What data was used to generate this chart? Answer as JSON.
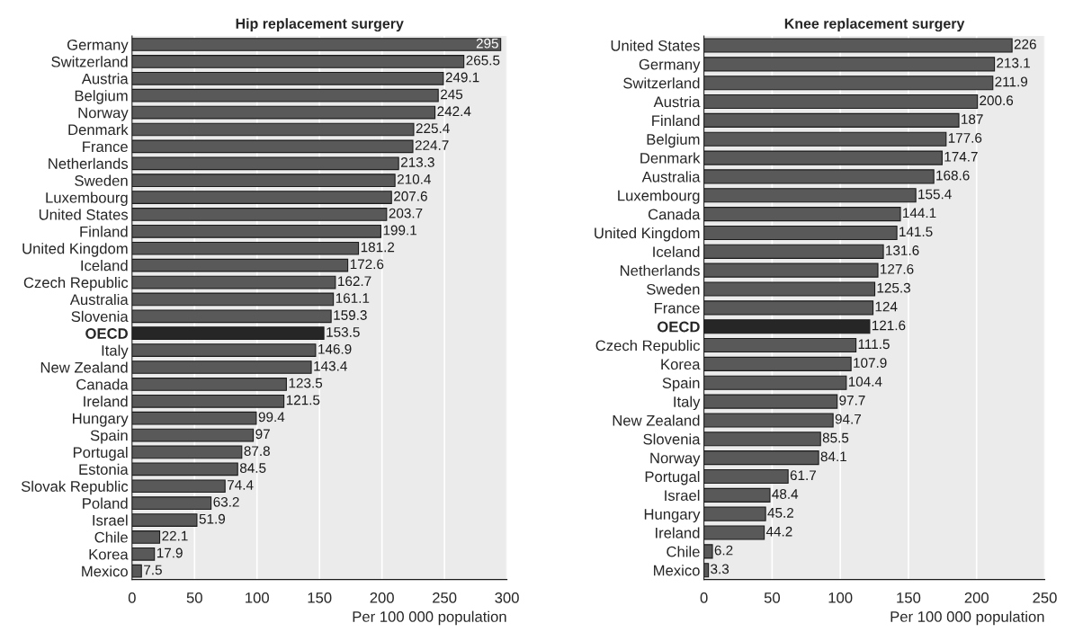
{
  "chart_data": [
    {
      "type": "bar",
      "orientation": "horizontal",
      "title": "Hip replacement surgery",
      "xlabel": "Per 100 000 population",
      "categories": [
        "Germany",
        "Switzerland",
        "Austria",
        "Belgium",
        "Norway",
        "Denmark",
        "France",
        "Netherlands",
        "Sweden",
        "Luxembourg",
        "United States",
        "Finland",
        "United Kingdom",
        "Iceland",
        "Czech Republic",
        "Australia",
        "Slovenia",
        "OECD",
        "Italy",
        "New Zealand",
        "Canada",
        "Ireland",
        "Hungary",
        "Spain",
        "Portugal",
        "Estonia",
        "Slovak Republic",
        "Poland",
        "Israel",
        "Chile",
        "Korea",
        "Mexico"
      ],
      "values": [
        295,
        265.5,
        249.1,
        245,
        242.4,
        225.4,
        224.7,
        213.3,
        210.4,
        207.6,
        203.7,
        199.1,
        181.2,
        172.6,
        162.7,
        161.1,
        159.3,
        153.5,
        146.9,
        143.4,
        123.5,
        121.5,
        99.4,
        97,
        87.8,
        84.5,
        74.4,
        63.2,
        51.9,
        22.1,
        17.9,
        7.5
      ],
      "colors": [
        "#595959",
        "#595959",
        "#595959",
        "#595959",
        "#595959",
        "#595959",
        "#595959",
        "#595959",
        "#595959",
        "#595959",
        "#595959",
        "#595959",
        "#595959",
        "#595959",
        "#595959",
        "#595959",
        "#595959",
        "#262626",
        "#595959",
        "#595959",
        "#595959",
        "#595959",
        "#595959",
        "#595959",
        "#595959",
        "#595959",
        "#595959",
        "#595959",
        "#595959",
        "#595959",
        "#595959",
        "#595959"
      ],
      "xlim": [
        0,
        300
      ],
      "xticks": [
        0,
        50,
        100,
        150,
        200,
        250,
        300
      ],
      "grid": "x",
      "data_labels": true
    },
    {
      "type": "bar",
      "orientation": "horizontal",
      "title": "Knee replacement surgery",
      "xlabel": "Per 100 000 population",
      "categories": [
        "United States",
        "Germany",
        "Switzerland",
        "Austria",
        "Finland",
        "Belgium",
        "Denmark",
        "Australia",
        "Luxembourg",
        "Canada",
        "United Kingdom",
        "Iceland",
        "Netherlands",
        "Sweden",
        "France",
        "OECD",
        "Czech Republic",
        "Korea",
        "Spain",
        "Italy",
        "New Zealand",
        "Slovenia",
        "Norway",
        "Portugal",
        "Israel",
        "Hungary",
        "Ireland",
        "Chile",
        "Mexico"
      ],
      "values": [
        226,
        213.1,
        211.9,
        200.6,
        187,
        177.6,
        174.7,
        168.6,
        155.4,
        144.1,
        141.5,
        131.6,
        127.6,
        125.3,
        124,
        121.6,
        111.5,
        107.9,
        104.4,
        97.7,
        94.7,
        85.5,
        84.1,
        61.7,
        48.4,
        45.2,
        44.2,
        6.2,
        3.3
      ],
      "colors": [
        "#595959",
        "#595959",
        "#595959",
        "#595959",
        "#595959",
        "#595959",
        "#595959",
        "#595959",
        "#595959",
        "#595959",
        "#595959",
        "#595959",
        "#595959",
        "#595959",
        "#595959",
        "#262626",
        "#595959",
        "#595959",
        "#595959",
        "#595959",
        "#595959",
        "#595959",
        "#595959",
        "#595959",
        "#595959",
        "#595959",
        "#595959",
        "#595959",
        "#595959"
      ],
      "xlim": [
        0,
        250
      ],
      "xticks": [
        0,
        50,
        100,
        150,
        200,
        250
      ],
      "grid": "x",
      "data_labels": true
    }
  ]
}
